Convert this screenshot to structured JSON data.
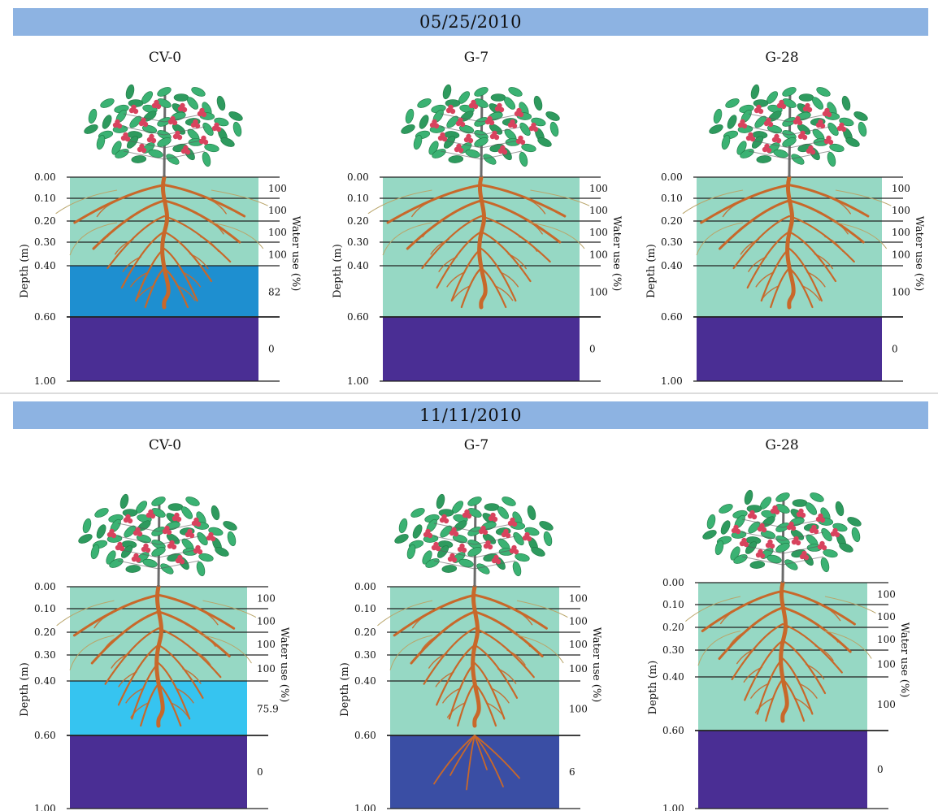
{
  "rows": [
    {
      "date": "05/25/2010",
      "panels": [
        {
          "title": "CV-0",
          "depth_ticks": [
            "0.00",
            "0.10",
            "0.20",
            "0.30",
            "0.40",
            "0.60",
            "1.00"
          ],
          "water_use": [
            "100",
            "100",
            "100",
            "100",
            "82",
            "0"
          ],
          "layer_colors": [
            "#96d8c4",
            "#96d8c4",
            "#96d8c4",
            "#96d8c4",
            "#1e8fd0",
            "#4a2e94"
          ],
          "deep_roots": false
        },
        {
          "title": "G-7",
          "depth_ticks": [
            "0.00",
            "0.10",
            "0.20",
            "0.30",
            "0.40",
            "0.60",
            "1.00"
          ],
          "water_use": [
            "100",
            "100",
            "100",
            "100",
            "100",
            "0"
          ],
          "layer_colors": [
            "#96d8c4",
            "#96d8c4",
            "#96d8c4",
            "#96d8c4",
            "#96d8c4",
            "#4a2e94"
          ],
          "deep_roots": false
        },
        {
          "title": "G-28",
          "depth_ticks": [
            "0.00",
            "0.10",
            "0.20",
            "0.30",
            "0.40",
            "0.60",
            "1.00"
          ],
          "water_use": [
            "100",
            "100",
            "100",
            "100",
            "100",
            "0"
          ],
          "layer_colors": [
            "#96d8c4",
            "#96d8c4",
            "#96d8c4",
            "#96d8c4",
            "#96d8c4",
            "#4a2e94"
          ],
          "deep_roots": false
        }
      ]
    },
    {
      "date": "11/11/2010",
      "panels": [
        {
          "title": "CV-0",
          "depth_ticks": [
            "0.00",
            "0.10",
            "0.20",
            "0.30",
            "0.40",
            "0.60",
            "1.00"
          ],
          "water_use": [
            "100",
            "100",
            "100",
            "100",
            "75.9",
            "0"
          ],
          "layer_colors": [
            "#96d8c4",
            "#96d8c4",
            "#96d8c4",
            "#96d8c4",
            "#36c4f0",
            "#4a2e94"
          ],
          "deep_roots": false
        },
        {
          "title": "G-7",
          "depth_ticks": [
            "0.00",
            "0.10",
            "0.20",
            "0.30",
            "0.40",
            "0.60",
            "1.00"
          ],
          "water_use": [
            "100",
            "100",
            "100",
            "100",
            "100",
            "6"
          ],
          "layer_colors": [
            "#96d8c4",
            "#96d8c4",
            "#96d8c4",
            "#96d8c4",
            "#96d8c4",
            "#3a4ea4"
          ],
          "deep_roots": true
        },
        {
          "title": "G-28",
          "depth_ticks": [
            "0.00",
            "0.10",
            "0.20",
            "0.30",
            "0.40",
            "0.60",
            "1.00"
          ],
          "water_use": [
            "100",
            "100",
            "100",
            "100",
            "100",
            "0"
          ],
          "layer_colors": [
            "#96d8c4",
            "#96d8c4",
            "#96d8c4",
            "#96d8c4",
            "#96d8c4",
            "#4a2e94"
          ],
          "deep_roots": false
        }
      ]
    }
  ],
  "depth_axis_label": "Depth (m)",
  "water_axis_label": "Water use (%)",
  "colors": {
    "header_bar": "#8db3e2",
    "root": "#c8682a",
    "leaf": "#3bb273",
    "berry": "#d8435e",
    "trunk": "#6b6b6b"
  }
}
